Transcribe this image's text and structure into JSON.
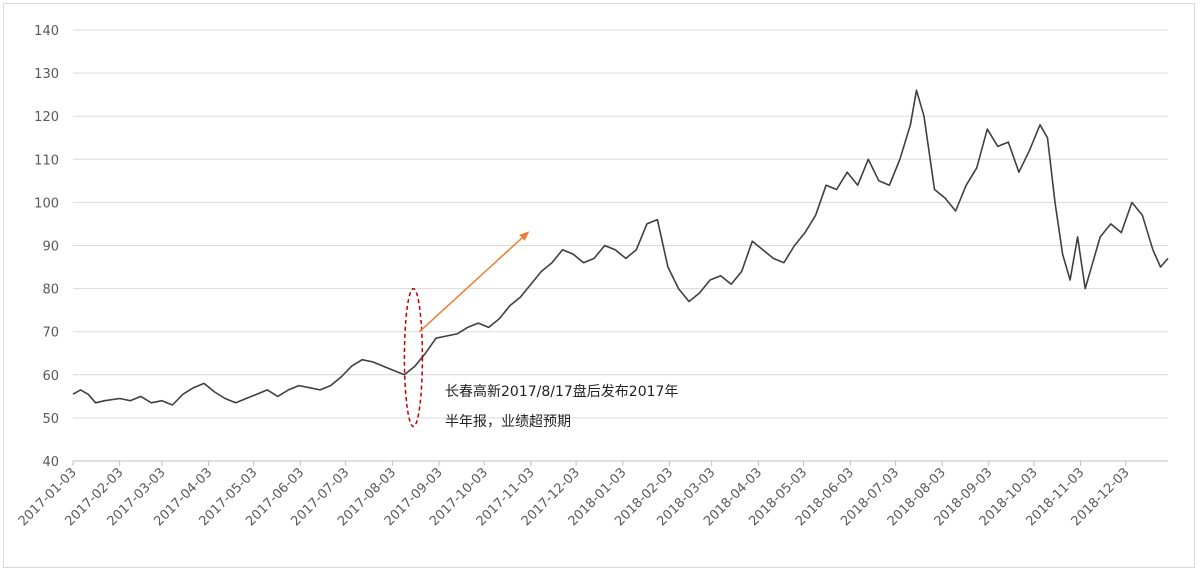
{
  "chart_data": {
    "type": "line",
    "title": "",
    "xlabel": "",
    "ylabel": "",
    "ylim": [
      40,
      140
    ],
    "yticks": [
      40,
      50,
      60,
      70,
      80,
      90,
      100,
      110,
      120,
      130,
      140
    ],
    "xlim": [
      "2017-01-03",
      "2018-12-31"
    ],
    "xtick_labels": [
      "2017-01-03",
      "2017-02-03",
      "2017-03-03",
      "2017-04-03",
      "2017-05-03",
      "2017-06-03",
      "2017-07-03",
      "2017-08-03",
      "2017-09-03",
      "2017-10-03",
      "2017-11-03",
      "2017-12-03",
      "2018-01-03",
      "2018-02-03",
      "2018-03-03",
      "2018-04-03",
      "2018-05-03",
      "2018-06-03",
      "2018-07-03",
      "2018-08-03",
      "2018-09-03",
      "2018-10-03",
      "2018-11-03",
      "2018-12-03"
    ],
    "grid": true,
    "legend": "none",
    "colors": {
      "line": "#404040",
      "grid": "#d9d9d9",
      "axis": "#bfbfbf",
      "arrow": "#ed7d31",
      "ellipse": "#c00000"
    },
    "series": [
      {
        "points": [
          [
            "2017-01-03",
            55.5
          ],
          [
            "2017-01-08",
            56.5
          ],
          [
            "2017-01-13",
            55.5
          ],
          [
            "2017-01-18",
            53.5
          ],
          [
            "2017-01-24",
            54.0
          ],
          [
            "2017-02-03",
            54.5
          ],
          [
            "2017-02-10",
            54.0
          ],
          [
            "2017-02-17",
            55.0
          ],
          [
            "2017-02-24",
            53.5
          ],
          [
            "2017-03-03",
            54.0
          ],
          [
            "2017-03-10",
            53.0
          ],
          [
            "2017-03-17",
            55.5
          ],
          [
            "2017-03-24",
            57.0
          ],
          [
            "2017-03-31",
            58.0
          ],
          [
            "2017-04-07",
            56.0
          ],
          [
            "2017-04-14",
            54.5
          ],
          [
            "2017-04-21",
            53.5
          ],
          [
            "2017-04-28",
            54.5
          ],
          [
            "2017-05-05",
            55.5
          ],
          [
            "2017-05-12",
            56.5
          ],
          [
            "2017-05-19",
            55.0
          ],
          [
            "2017-05-26",
            56.5
          ],
          [
            "2017-06-02",
            57.5
          ],
          [
            "2017-06-09",
            57.0
          ],
          [
            "2017-06-16",
            56.5
          ],
          [
            "2017-06-23",
            57.5
          ],
          [
            "2017-06-30",
            59.5
          ],
          [
            "2017-07-07",
            62.0
          ],
          [
            "2017-07-14",
            63.5
          ],
          [
            "2017-07-21",
            63.0
          ],
          [
            "2017-07-28",
            62.0
          ],
          [
            "2017-08-04",
            61.0
          ],
          [
            "2017-08-11",
            60.0
          ],
          [
            "2017-08-18",
            62.0
          ],
          [
            "2017-08-25",
            65.0
          ],
          [
            "2017-09-01",
            68.5
          ],
          [
            "2017-09-08",
            69.0
          ],
          [
            "2017-09-15",
            69.5
          ],
          [
            "2017-09-22",
            71.0
          ],
          [
            "2017-09-29",
            72.0
          ],
          [
            "2017-10-06",
            71.0
          ],
          [
            "2017-10-13",
            73.0
          ],
          [
            "2017-10-20",
            76.0
          ],
          [
            "2017-10-27",
            78.0
          ],
          [
            "2017-11-03",
            81.0
          ],
          [
            "2017-11-10",
            84.0
          ],
          [
            "2017-11-17",
            86.0
          ],
          [
            "2017-11-24",
            89.0
          ],
          [
            "2017-12-01",
            88.0
          ],
          [
            "2017-12-08",
            86.0
          ],
          [
            "2017-12-15",
            87.0
          ],
          [
            "2017-12-22",
            90.0
          ],
          [
            "2017-12-29",
            89.0
          ],
          [
            "2018-01-05",
            87.0
          ],
          [
            "2018-01-12",
            89.0
          ],
          [
            "2018-01-19",
            95.0
          ],
          [
            "2018-01-26",
            96.0
          ],
          [
            "2018-02-02",
            85.0
          ],
          [
            "2018-02-09",
            80.0
          ],
          [
            "2018-02-16",
            77.0
          ],
          [
            "2018-02-23",
            79.0
          ],
          [
            "2018-03-02",
            82.0
          ],
          [
            "2018-03-09",
            83.0
          ],
          [
            "2018-03-16",
            81.0
          ],
          [
            "2018-03-23",
            84.0
          ],
          [
            "2018-03-30",
            91.0
          ],
          [
            "2018-04-06",
            89.0
          ],
          [
            "2018-04-13",
            87.0
          ],
          [
            "2018-04-20",
            86.0
          ],
          [
            "2018-04-27",
            90.0
          ],
          [
            "2018-05-04",
            93.0
          ],
          [
            "2018-05-11",
            97.0
          ],
          [
            "2018-05-18",
            104.0
          ],
          [
            "2018-05-25",
            103.0
          ],
          [
            "2018-06-01",
            107.0
          ],
          [
            "2018-06-08",
            104.0
          ],
          [
            "2018-06-15",
            110.0
          ],
          [
            "2018-06-22",
            105.0
          ],
          [
            "2018-06-29",
            104.0
          ],
          [
            "2018-07-06",
            110.0
          ],
          [
            "2018-07-13",
            118.0
          ],
          [
            "2018-07-17",
            126.0
          ],
          [
            "2018-07-22",
            120.0
          ],
          [
            "2018-07-29",
            103.0
          ],
          [
            "2018-08-05",
            101.0
          ],
          [
            "2018-08-12",
            98.0
          ],
          [
            "2018-08-19",
            104.0
          ],
          [
            "2018-08-26",
            108.0
          ],
          [
            "2018-09-02",
            117.0
          ],
          [
            "2018-09-09",
            113.0
          ],
          [
            "2018-09-16",
            114.0
          ],
          [
            "2018-09-23",
            107.0
          ],
          [
            "2018-09-30",
            112.0
          ],
          [
            "2018-10-07",
            118.0
          ],
          [
            "2018-10-12",
            115.0
          ],
          [
            "2018-10-17",
            100.0
          ],
          [
            "2018-10-22",
            88.0
          ],
          [
            "2018-10-27",
            82.0
          ],
          [
            "2018-11-01",
            92.0
          ],
          [
            "2018-11-06",
            80.0
          ],
          [
            "2018-11-11",
            86.0
          ],
          [
            "2018-11-16",
            92.0
          ],
          [
            "2018-11-23",
            95.0
          ],
          [
            "2018-11-30",
            93.0
          ],
          [
            "2018-12-07",
            100.0
          ],
          [
            "2018-12-14",
            97.0
          ],
          [
            "2018-12-21",
            89.0
          ],
          [
            "2018-12-26",
            85.0
          ],
          [
            "2018-12-31",
            87.0
          ]
        ]
      }
    ],
    "annotations": {
      "text_line1": "长春高新2017/8/17盘后发布2017年",
      "text_line2": "半年报，业绩超预期",
      "ellipse_center": [
        "2017-08-17",
        64
      ],
      "ellipse_y_range": [
        48,
        80
      ],
      "arrow_from": [
        "2017-08-21",
        70
      ],
      "arrow_to": [
        "2017-11-01",
        93
      ]
    }
  }
}
